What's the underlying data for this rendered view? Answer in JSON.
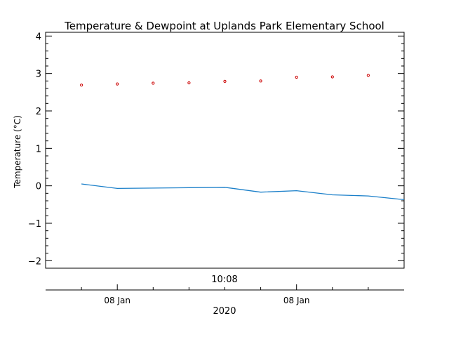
{
  "chart_data": {
    "type": "line",
    "title": "Temperature & Dewpoint at Uplands Park Elementary School",
    "ylabel": "Temperature (°C)",
    "ylim": [
      -2.2,
      4.1
    ],
    "yticks": [
      -2,
      -1,
      0,
      1,
      2,
      3,
      4
    ],
    "ytick_labels": [
      "−2",
      "−1",
      "0",
      "1",
      "2",
      "3",
      "4"
    ],
    "x_range": [
      0,
      10
    ],
    "top_axis_label": "10:08",
    "bottom_axis": {
      "ticks": [
        2,
        7
      ],
      "tick_labels": [
        "08 Jan",
        "08 Jan"
      ],
      "label": "2020"
    },
    "grid": false,
    "series": [
      {
        "role": "temperature",
        "style": "points",
        "color": "#cc0000",
        "x": [
          1,
          2,
          3,
          4,
          5,
          6,
          7,
          8,
          9
        ],
        "values": [
          2.69,
          2.72,
          2.74,
          2.75,
          2.79,
          2.8,
          2.9,
          2.91,
          2.95
        ]
      },
      {
        "role": "dewpoint",
        "style": "line",
        "color": "#1a7fc9",
        "x": [
          1,
          2,
          3,
          4,
          5,
          6,
          7,
          8,
          9,
          10
        ],
        "values": [
          0.05,
          -0.07,
          -0.06,
          -0.05,
          -0.04,
          -0.17,
          -0.13,
          -0.24,
          -0.27,
          -0.37
        ]
      }
    ]
  }
}
